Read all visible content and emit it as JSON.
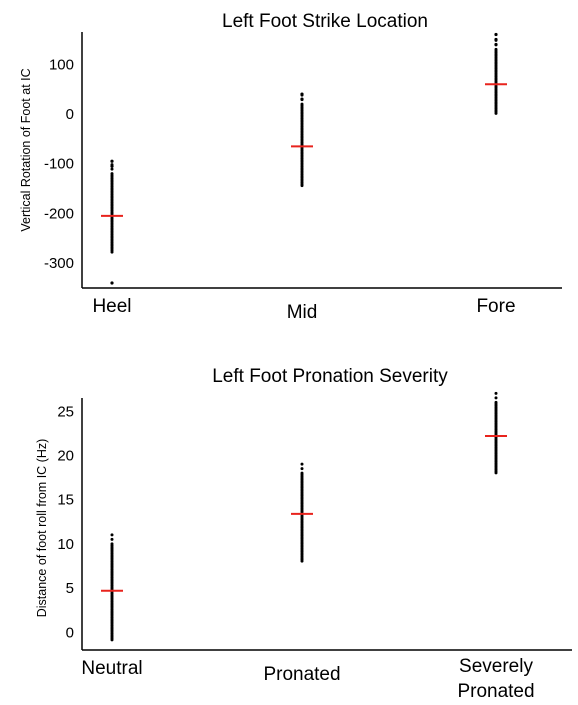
{
  "colors": {
    "points": "#000000",
    "median": "#e8231d"
  },
  "chart_data": [
    {
      "type": "scatter",
      "title": "Left Foot Strike Location",
      "xlabel": "",
      "ylabel": "Vertical Rotation of Foot at IC",
      "categories": [
        "Heel",
        "Mid",
        "Fore"
      ],
      "yticks": [
        100,
        0,
        -100,
        -200,
        -300
      ],
      "ylim": [
        -350,
        165
      ],
      "series": [
        {
          "category": "Heel",
          "median": -205,
          "outliers": [
            -95,
            -105,
            -340
          ],
          "dense_range": [
            -280,
            -120
          ]
        },
        {
          "category": "Mid",
          "median": -65,
          "outliers": [
            40,
            30
          ],
          "dense_range": [
            -145,
            20
          ]
        },
        {
          "category": "Fore",
          "median": 60,
          "outliers": [
            160,
            150,
            140
          ],
          "dense_range": [
            0,
            130
          ]
        }
      ]
    },
    {
      "type": "scatter",
      "title": "Left Foot Pronation Severity",
      "xlabel": "",
      "ylabel": "Distance of foot roll from IC (Hz)",
      "categories": [
        "Neutral",
        "Pronated",
        "Severely Pronated"
      ],
      "category_lines": [
        [
          "Neutral"
        ],
        [
          "Pronated"
        ],
        [
          "Severely",
          "Pronated"
        ]
      ],
      "yticks": [
        25,
        20,
        15,
        10,
        5,
        0
      ],
      "ylim": [
        -2,
        26.5
      ],
      "series": [
        {
          "category": "Neutral",
          "median": 4.7,
          "outliers": [],
          "dense_range": [
            -1,
            10
          ]
        },
        {
          "category": "Pronated",
          "median": 13.4,
          "outliers": [],
          "dense_range": [
            8,
            18
          ]
        },
        {
          "category": "Severely Pronated",
          "median": 22.2,
          "outliers": [],
          "dense_range": [
            18,
            26
          ]
        }
      ]
    }
  ]
}
